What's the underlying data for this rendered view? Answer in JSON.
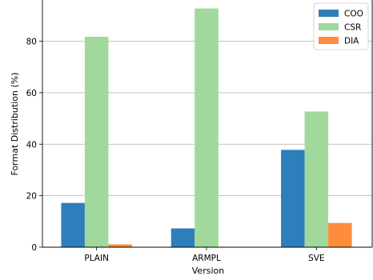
{
  "chart_data": {
    "type": "bar",
    "title": "",
    "xlabel": "Version",
    "ylabel": "Format Distribution (%)",
    "categories": [
      "PLAIN",
      "ARMPL",
      "SVE"
    ],
    "series": [
      {
        "name": "COO",
        "color": "#2f7ebc",
        "values": [
          17.2,
          7.3,
          37.8
        ]
      },
      {
        "name": "CSR",
        "color": "#a0d99b",
        "values": [
          81.7,
          92.7,
          52.7
        ]
      },
      {
        "name": "DIA",
        "color": "#fd8d3c",
        "values": [
          1.1,
          0.0,
          9.4
        ]
      }
    ],
    "ylim": [
      0,
      96
    ],
    "yticks": [
      0,
      20,
      40,
      60,
      80
    ],
    "grid": "horizontal",
    "legend_position": "top-right"
  }
}
